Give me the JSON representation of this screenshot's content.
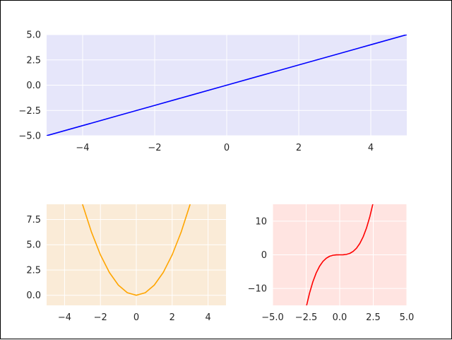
{
  "chart_data": [
    {
      "type": "line",
      "title": "",
      "xlabel": "",
      "ylabel": "",
      "xlim": [
        -5,
        5
      ],
      "ylim": [
        -5,
        5
      ],
      "xticks": [
        -4,
        -2,
        0,
        2,
        4
      ],
      "xtick_labels": [
        "−4",
        "−2",
        "0",
        "2",
        "4"
      ],
      "yticks": [
        -5,
        -2.5,
        0,
        2.5,
        5
      ],
      "ytick_labels": [
        "−5.0",
        "−2.5",
        "0.0",
        "2.5",
        "5.0"
      ],
      "grid": true,
      "background": "#e6e6fa",
      "series": [
        {
          "color": "#0000ff",
          "x": [
            -5,
            -4,
            -3,
            -2,
            -1,
            0,
            1,
            2,
            3,
            4,
            5
          ],
          "y": [
            -5,
            -4,
            -3,
            -2,
            -1,
            0,
            1,
            2,
            3,
            4,
            5
          ]
        }
      ]
    },
    {
      "type": "line",
      "title": "",
      "xlabel": "",
      "ylabel": "",
      "xlim": [
        -5,
        5
      ],
      "ylim": [
        -1,
        9
      ],
      "xticks": [
        -4,
        -2,
        0,
        2,
        4
      ],
      "xtick_labels": [
        "−4",
        "−2",
        "0",
        "2",
        "4"
      ],
      "yticks": [
        0,
        2.5,
        5,
        7.5
      ],
      "ytick_labels": [
        "0.0",
        "2.5",
        "5.0",
        "7.5"
      ],
      "grid": true,
      "background": "#faebd7",
      "series": [
        {
          "color": "#ffa500",
          "x": [
            -3,
            -2.5,
            -2,
            -1.5,
            -1,
            -0.5,
            0,
            0.5,
            1,
            1.5,
            2,
            2.5,
            3
          ],
          "y": [
            9,
            6.25,
            4,
            2.25,
            1,
            0.25,
            0,
            0.25,
            1,
            2.25,
            4,
            6.25,
            9
          ]
        }
      ]
    },
    {
      "type": "line",
      "title": "",
      "xlabel": "",
      "ylabel": "",
      "xlim": [
        -5,
        5
      ],
      "ylim": [
        -15,
        15
      ],
      "xticks": [
        -5,
        -2.5,
        0,
        2.5,
        5
      ],
      "xtick_labels": [
        "−5.0",
        "−2.5",
        "0.0",
        "2.5",
        "5.0"
      ],
      "yticks": [
        -10,
        0,
        10
      ],
      "ytick_labels": [
        "−10",
        "0",
        "10"
      ],
      "grid": true,
      "background": "#ffe4e1",
      "series": [
        {
          "color": "#ff0000",
          "x": [
            -2.47,
            -2.25,
            -2,
            -1.75,
            -1.5,
            -1.25,
            -1,
            -0.75,
            -0.5,
            -0.25,
            0,
            0.25,
            0.5,
            0.75,
            1,
            1.25,
            1.5,
            1.75,
            2,
            2.25,
            2.47
          ],
          "y": [
            -15.07,
            -11.39,
            -8,
            -5.36,
            -3.38,
            -1.95,
            -1,
            -0.42,
            -0.13,
            -0.02,
            0,
            0.02,
            0.13,
            0.42,
            1,
            1.95,
            3.38,
            5.36,
            8,
            11.39,
            15.07
          ]
        }
      ]
    }
  ]
}
